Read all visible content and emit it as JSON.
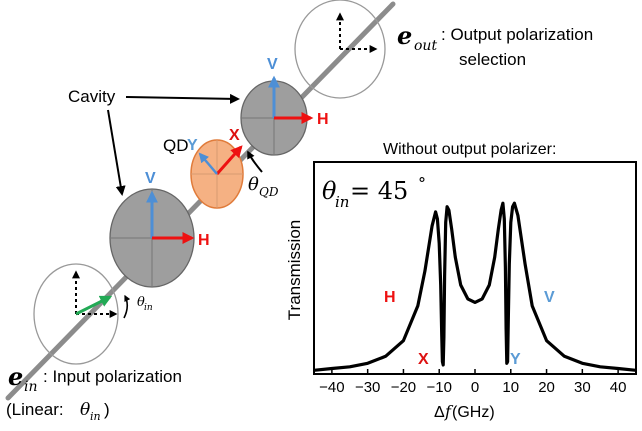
{
  "colors": {
    "beam": "#8c8c8c",
    "cavity_fill": "#9e9e9e",
    "qd_fill": "#f5b183",
    "qd_stroke": "#e07b3a",
    "h_arrow": "#ee1111",
    "v_arrow": "#4d8fd6",
    "x_label": "#dd1111",
    "y_label": "#5b9bd5",
    "green": "#22aa55",
    "ink": "#000000"
  },
  "labels": {
    "e_out_symbol": "e",
    "e_out_sub": "out",
    "e_out_text_1": ": Output polarization",
    "e_out_text_2": "selection",
    "cavity": "Cavity",
    "qd": "QD",
    "theta_qd_symbol": "θ",
    "theta_qd_sub": "QD",
    "theta_in_small_symbol": "θ",
    "theta_in_small_sub": "in",
    "e_in_symbol": "e",
    "e_in_sub": "in",
    "e_in_text": ": Input polarization",
    "linear_prefix": "(Linear: ",
    "linear_symbol": "θ",
    "linear_sub": "in",
    "linear_suffix": " )",
    "top_cavity_v": "V",
    "top_cavity_h": "H",
    "bottom_cavity_v": "V",
    "bottom_cavity_h": "H",
    "qd_x": "X",
    "qd_y": "Y"
  },
  "chart": {
    "title": "Without output polarizer:",
    "theta_symbol": "θ",
    "theta_sub": "in",
    "theta_eq": " = 45",
    "theta_deg": "°",
    "ylabel": "Transmission",
    "xlabel_delta": "Δ",
    "xlabel_f": "f",
    "xlabel_unit": " (GHz)",
    "annot_h": "H",
    "annot_v": "V",
    "annot_x": "X",
    "annot_y": "Y"
  },
  "chart_data": {
    "type": "line",
    "xlabel": "Δf (GHz)",
    "ylabel": "Transmission",
    "xlim": [
      -45,
      45
    ],
    "xticks": [
      -40,
      -30,
      -20,
      -10,
      0,
      10,
      20,
      30,
      40
    ],
    "tick_labels": [
      "−40",
      "−30",
      "−20",
      "−10",
      "0",
      "10",
      "20",
      "30",
      "40"
    ],
    "grid": false,
    "series": [
      {
        "x": [
          -45,
          -40,
          -35,
          -30,
          -25,
          -20,
          -16,
          -14,
          -12,
          -11,
          -10.5,
          -10,
          -9.6,
          -9.3,
          -9.1,
          -8.9,
          -8.7,
          -8.5,
          -8.2,
          -7.8,
          -7.3,
          -6.5,
          -5.5,
          -4,
          -2,
          0,
          2,
          4,
          5.5,
          6.5,
          7.3,
          7.8,
          8.2,
          8.5,
          8.7,
          8.9,
          9.1,
          9.3,
          9.6,
          10,
          10.5,
          11,
          12,
          14,
          16,
          20,
          25,
          30,
          35,
          40,
          45
        ],
        "y": [
          0.01,
          0.02,
          0.03,
          0.05,
          0.09,
          0.18,
          0.38,
          0.58,
          0.84,
          0.92,
          0.88,
          0.74,
          0.5,
          0.22,
          0.06,
          0.04,
          0.2,
          0.55,
          0.86,
          0.95,
          0.93,
          0.82,
          0.66,
          0.5,
          0.42,
          0.4,
          0.42,
          0.5,
          0.66,
          0.82,
          0.93,
          0.97,
          0.88,
          0.6,
          0.25,
          0.05,
          0.06,
          0.3,
          0.62,
          0.86,
          0.95,
          0.97,
          0.9,
          0.62,
          0.38,
          0.18,
          0.09,
          0.05,
          0.03,
          0.02,
          0.01
        ]
      }
    ]
  }
}
